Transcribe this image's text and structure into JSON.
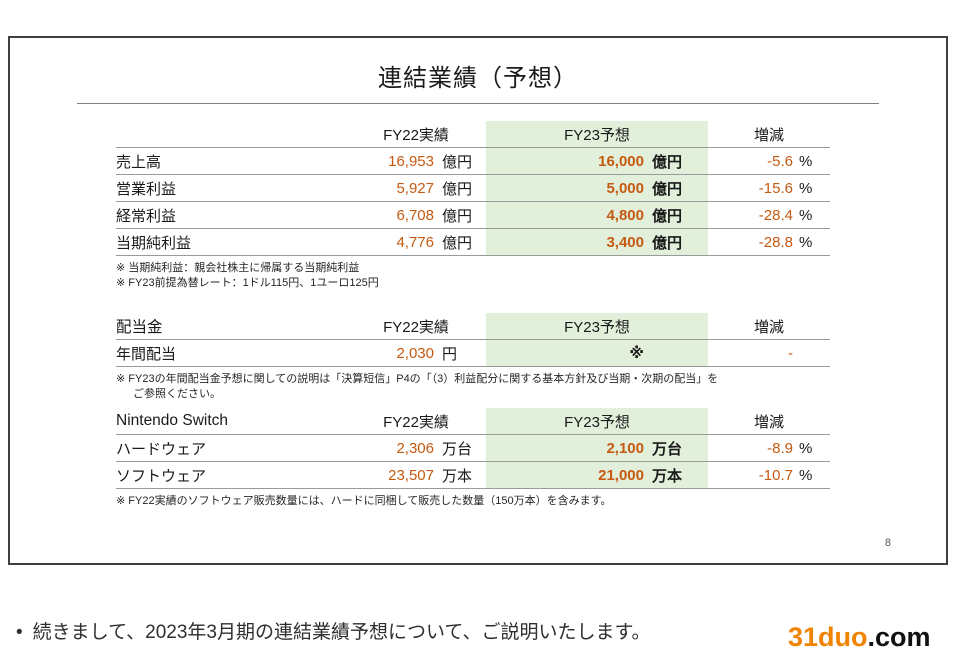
{
  "slide": {
    "title": "連結業績（予想）",
    "page_number": "8"
  },
  "colors": {
    "accent_orange": "#C55A11",
    "forecast_green_bg": "#E2EFDA",
    "watermark_orange": "#F08300"
  },
  "table1": {
    "headers": {
      "fy22": "FY22実績",
      "fy23": "FY23予想",
      "change": "増減"
    },
    "rows": [
      {
        "label": "売上高",
        "fy22_value": "16,953",
        "fy22_unit": "億円",
        "fy23_value": "16,000",
        "fy23_unit": "億円",
        "change_value": "-5.6",
        "change_unit": "%"
      },
      {
        "label": "営業利益",
        "fy22_value": "5,927",
        "fy22_unit": "億円",
        "fy23_value": "5,000",
        "fy23_unit": "億円",
        "change_value": "-15.6",
        "change_unit": "%"
      },
      {
        "label": "経常利益",
        "fy22_value": "6,708",
        "fy22_unit": "億円",
        "fy23_value": "4,800",
        "fy23_unit": "億円",
        "change_value": "-28.4",
        "change_unit": "%"
      },
      {
        "label": "当期純利益",
        "fy22_value": "4,776",
        "fy22_unit": "億円",
        "fy23_value": "3,400",
        "fy23_unit": "億円",
        "change_value": "-28.8",
        "change_unit": "%"
      }
    ],
    "footnotes": [
      "※ 当期純利益：親会社株主に帰属する当期純利益",
      "※ FY23前提為替レート：1ドル115円、1ユーロ125円"
    ]
  },
  "table2": {
    "label": "配当金",
    "headers": {
      "fy22": "FY22実績",
      "fy23": "FY23予想",
      "change": "増減"
    },
    "rows": [
      {
        "label": "年間配当",
        "fy22_value": "2,030",
        "fy22_unit": "円",
        "fy23_value": "※",
        "fy23_unit": "",
        "change_value": "-",
        "change_unit": ""
      }
    ],
    "footnotes": [
      "※ FY23の年間配当金予想に関しての説明は「決算短信」P4の「（3）利益配分に関する基本方針及び当期・次期の配当」を",
      "ご参照ください。"
    ]
  },
  "table3": {
    "label": "Nintendo Switch",
    "headers": {
      "fy22": "FY22実績",
      "fy23": "FY23予想",
      "change": "増減"
    },
    "rows": [
      {
        "label": "ハードウェア",
        "fy22_value": "2,306",
        "fy22_unit": "万台",
        "fy23_value": "2,100",
        "fy23_unit": "万台",
        "change_value": "-8.9",
        "change_unit": "%"
      },
      {
        "label": "ソフトウェア",
        "fy22_value": "23,507",
        "fy22_unit": "万本",
        "fy23_value": "21,000",
        "fy23_unit": "万本",
        "change_value": "-10.7",
        "change_unit": "%"
      }
    ],
    "footnotes": [
      "※ FY22実績のソフトウェア販売数量には、ハードに同梱して販売した数量（150万本）を含みます。"
    ]
  },
  "caption": {
    "bullet": "•",
    "text": "続きまして、2023年3月期の連結業績予想について、ご説明いたします。"
  },
  "watermark": {
    "brand": "31duo",
    "suffix": ".com"
  }
}
